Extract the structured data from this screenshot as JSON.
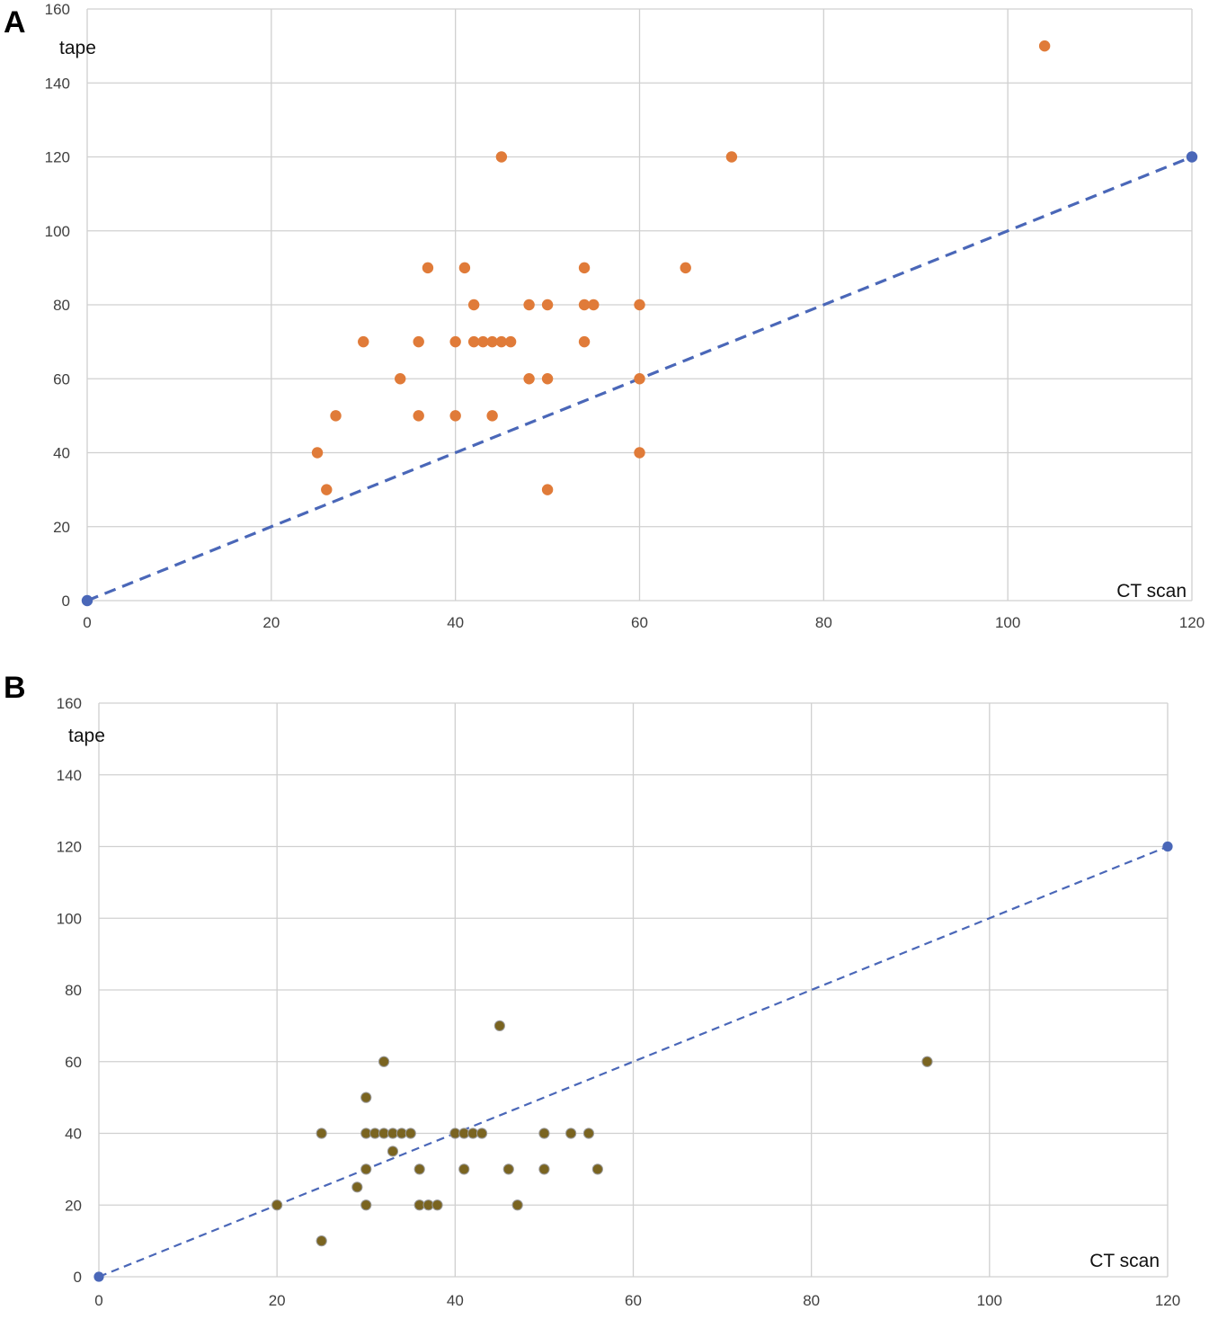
{
  "chart_data": [
    {
      "type": "scatter",
      "panel_label": "A",
      "title": "",
      "xlabel": "CT scan",
      "ylabel": "tape",
      "xlim": [
        0,
        120
      ],
      "ylim": [
        0,
        160
      ],
      "xticks": [
        0,
        20,
        40,
        60,
        80,
        100,
        120
      ],
      "yticks": [
        0,
        20,
        40,
        60,
        80,
        100,
        120,
        140,
        160
      ],
      "grid": true,
      "series": [
        {
          "color": "#e07b39",
          "points": [
            [
              25,
              40
            ],
            [
              26,
              30
            ],
            [
              27,
              50
            ],
            [
              30,
              70
            ],
            [
              34,
              60
            ],
            [
              36,
              70
            ],
            [
              36,
              50
            ],
            [
              37,
              90
            ],
            [
              40,
              70
            ],
            [
              40,
              50
            ],
            [
              41,
              90
            ],
            [
              42,
              80
            ],
            [
              42,
              70
            ],
            [
              43,
              70
            ],
            [
              44,
              70
            ],
            [
              45,
              70
            ],
            [
              46,
              70
            ],
            [
              44,
              50
            ],
            [
              45,
              120
            ],
            [
              48,
              80
            ],
            [
              48,
              60
            ],
            [
              50,
              80
            ],
            [
              50,
              60
            ],
            [
              50,
              30
            ],
            [
              54,
              90
            ],
            [
              54,
              80
            ],
            [
              55,
              80
            ],
            [
              54,
              70
            ],
            [
              60,
              80
            ],
            [
              60,
              60
            ],
            [
              60,
              40
            ],
            [
              65,
              90
            ],
            [
              70,
              120
            ],
            [
              104,
              150
            ]
          ]
        }
      ],
      "reference_line": {
        "points": [
          [
            0,
            0
          ],
          [
            120,
            120
          ]
        ],
        "color": "#4a67b8",
        "style": "dashed"
      }
    },
    {
      "type": "scatter",
      "panel_label": "B",
      "title": "",
      "xlabel": "CT scan",
      "ylabel": "tape",
      "xlim": [
        0,
        120
      ],
      "ylim": [
        0,
        160
      ],
      "xticks": [
        0,
        20,
        40,
        60,
        80,
        100,
        120
      ],
      "yticks": [
        0,
        20,
        40,
        60,
        80,
        100,
        120,
        140,
        160
      ],
      "grid": true,
      "series": [
        {
          "color": "#7a6420",
          "points": [
            [
              20,
              20
            ],
            [
              25,
              40
            ],
            [
              25,
              10
            ],
            [
              29,
              25
            ],
            [
              30,
              50
            ],
            [
              30,
              40
            ],
            [
              30,
              30
            ],
            [
              30,
              20
            ],
            [
              31,
              40
            ],
            [
              32,
              40
            ],
            [
              32,
              60
            ],
            [
              33,
              40
            ],
            [
              33,
              35
            ],
            [
              34,
              40
            ],
            [
              35,
              40
            ],
            [
              36,
              30
            ],
            [
              36,
              20
            ],
            [
              37,
              20
            ],
            [
              38,
              20
            ],
            [
              40,
              40
            ],
            [
              41,
              40
            ],
            [
              41,
              30
            ],
            [
              42,
              40
            ],
            [
              43,
              40
            ],
            [
              45,
              70
            ],
            [
              46,
              30
            ],
            [
              47,
              20
            ],
            [
              50,
              40
            ],
            [
              50,
              30
            ],
            [
              53,
              40
            ],
            [
              55,
              40
            ],
            [
              56,
              30
            ],
            [
              93,
              60
            ]
          ]
        }
      ],
      "reference_line": {
        "points": [
          [
            0,
            0
          ],
          [
            120,
            120
          ]
        ],
        "color": "#4a67b8",
        "style": "dashed"
      }
    }
  ]
}
